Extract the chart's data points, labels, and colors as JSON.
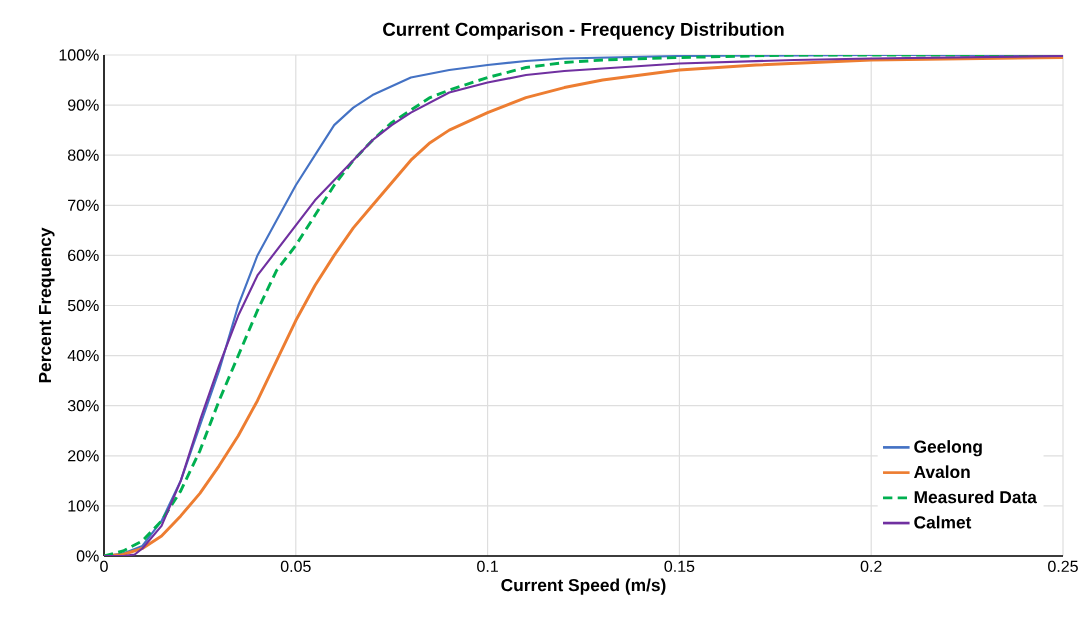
{
  "chart_data": {
    "type": "line",
    "title": "Current Comparison - Frequency Distribution",
    "xlabel": "Current Speed (m/s)",
    "ylabel": "Percent Frequency",
    "xlim": [
      0,
      0.25
    ],
    "xticks": [
      0,
      0.05,
      0.1,
      0.15,
      0.2,
      0.25
    ],
    "ylim": [
      0,
      100
    ],
    "yticks": [
      {
        "value": 0,
        "label": "0%"
      },
      {
        "value": 10,
        "label": "10%"
      },
      {
        "value": 20,
        "label": "20%"
      },
      {
        "value": 30,
        "label": "30%"
      },
      {
        "value": 40,
        "label": "40%"
      },
      {
        "value": 50,
        "label": "50%"
      },
      {
        "value": 60,
        "label": "60%"
      },
      {
        "value": 70,
        "label": "70%"
      },
      {
        "value": 80,
        "label": "80%"
      },
      {
        "value": 90,
        "label": "90%"
      },
      {
        "value": 100,
        "label": "100%"
      }
    ],
    "grid": true,
    "legend": "bottom right",
    "marker": "none",
    "series": [
      {
        "name": "Geelong",
        "color": "#4472c4",
        "line_style": "solid",
        "x": [
          0,
          0.005,
          0.01,
          0.015,
          0.02,
          0.025,
          0.03,
          0.035,
          0.04,
          0.045,
          0.05,
          0.055,
          0.06,
          0.065,
          0.07,
          0.08,
          0.09,
          0.1,
          0.11,
          0.12,
          0.15,
          0.2,
          0.25
        ],
        "values": [
          0,
          0.5,
          2,
          7,
          15,
          26,
          37,
          50,
          60,
          67,
          74,
          80,
          86,
          89.5,
          92,
          95.5,
          97,
          98,
          98.8,
          99.3,
          99.8,
          100,
          100
        ]
      },
      {
        "name": "Avalon",
        "color": "#ed7d31",
        "line_style": "solid",
        "x": [
          0,
          0.005,
          0.01,
          0.015,
          0.02,
          0.025,
          0.03,
          0.035,
          0.04,
          0.045,
          0.05,
          0.055,
          0.06,
          0.065,
          0.07,
          0.075,
          0.08,
          0.085,
          0.09,
          0.1,
          0.11,
          0.12,
          0.13,
          0.14,
          0.15,
          0.17,
          0.2,
          0.25
        ],
        "values": [
          0,
          0.3,
          1.5,
          4,
          8,
          12.5,
          18,
          24,
          31,
          39,
          47,
          54,
          60,
          65.5,
          70,
          74.5,
          79,
          82.5,
          85,
          88.5,
          91.5,
          93.5,
          95,
          96,
          97,
          98,
          99,
          99.5
        ]
      },
      {
        "name": "Measured Data",
        "color": "#00b050",
        "line_style": "dashed",
        "x": [
          0,
          0.005,
          0.01,
          0.015,
          0.02,
          0.025,
          0.03,
          0.035,
          0.04,
          0.045,
          0.05,
          0.055,
          0.06,
          0.065,
          0.07,
          0.075,
          0.08,
          0.085,
          0.09,
          0.1,
          0.11,
          0.12,
          0.13,
          0.15,
          0.18,
          0.25
        ],
        "values": [
          0,
          1,
          3,
          7,
          13,
          21,
          31,
          40,
          49,
          57,
          62,
          68,
          74,
          79,
          83,
          86.5,
          89,
          91.5,
          93,
          95.5,
          97.5,
          98.5,
          99,
          99.5,
          100,
          100
        ]
      },
      {
        "name": "Calmet",
        "color": "#7030a0",
        "line_style": "solid",
        "x": [
          0,
          0.005,
          0.008,
          0.01,
          0.015,
          0.02,
          0.025,
          0.03,
          0.035,
          0.04,
          0.045,
          0.05,
          0.055,
          0.06,
          0.065,
          0.07,
          0.075,
          0.08,
          0.09,
          0.1,
          0.11,
          0.12,
          0.13,
          0.15,
          0.18,
          0.2,
          0.25
        ],
        "values": [
          0,
          0,
          0.3,
          1.5,
          6,
          15,
          27,
          38,
          48,
          56,
          61,
          66,
          71,
          75,
          79,
          83,
          86,
          88.5,
          92.5,
          94.5,
          96,
          96.8,
          97.3,
          98.3,
          99,
          99.3,
          99.8
        ]
      }
    ]
  }
}
